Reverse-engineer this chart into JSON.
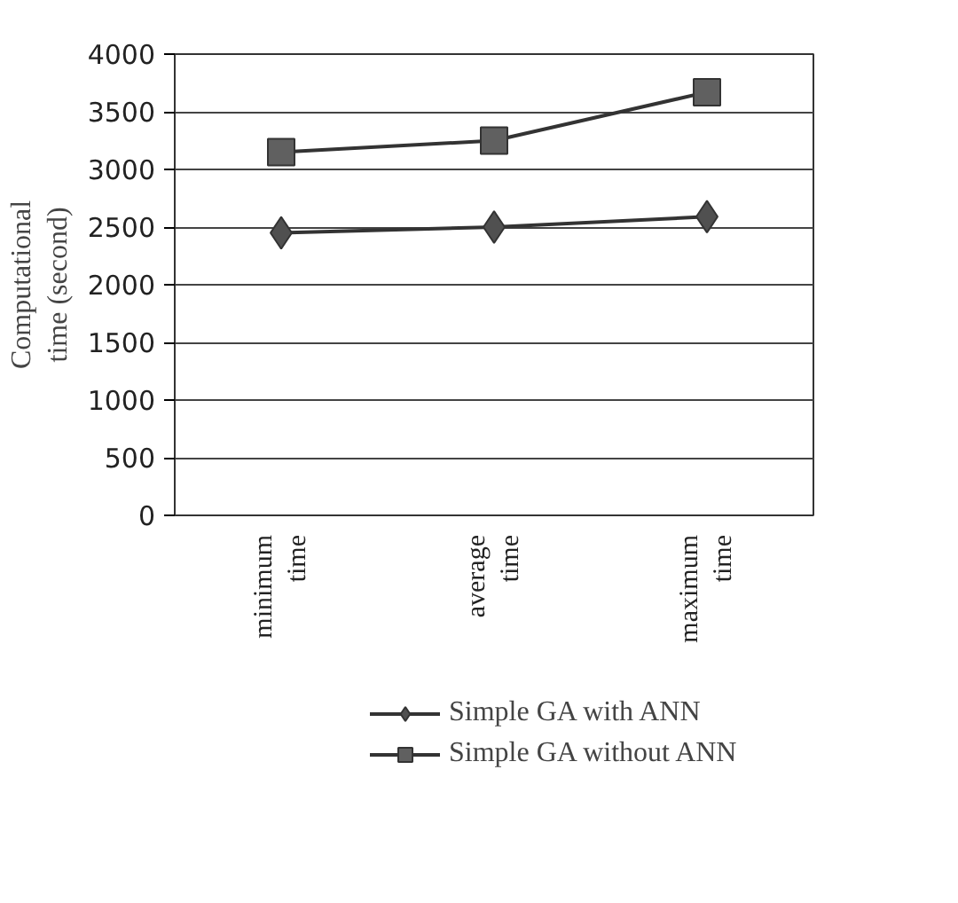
{
  "chart_data": {
    "type": "line",
    "ylabel": "Computational time (second)",
    "categories": [
      "minimum time",
      "average time",
      "maximum time"
    ],
    "series": [
      {
        "name": "Simple GA with ANN",
        "color": "#505050",
        "marker": "diamond",
        "values": [
          2450,
          2500,
          2590
        ]
      },
      {
        "name": "Simple GA without ANN",
        "color": "#606060",
        "marker": "square",
        "values": [
          3150,
          3250,
          3670
        ]
      }
    ],
    "ylim": [
      0,
      4000
    ],
    "yticks": [
      0,
      500,
      1000,
      1500,
      2000,
      2500,
      3000,
      3500,
      4000
    ],
    "grid": "y",
    "legend": "bottom",
    "line_style": "solid"
  }
}
